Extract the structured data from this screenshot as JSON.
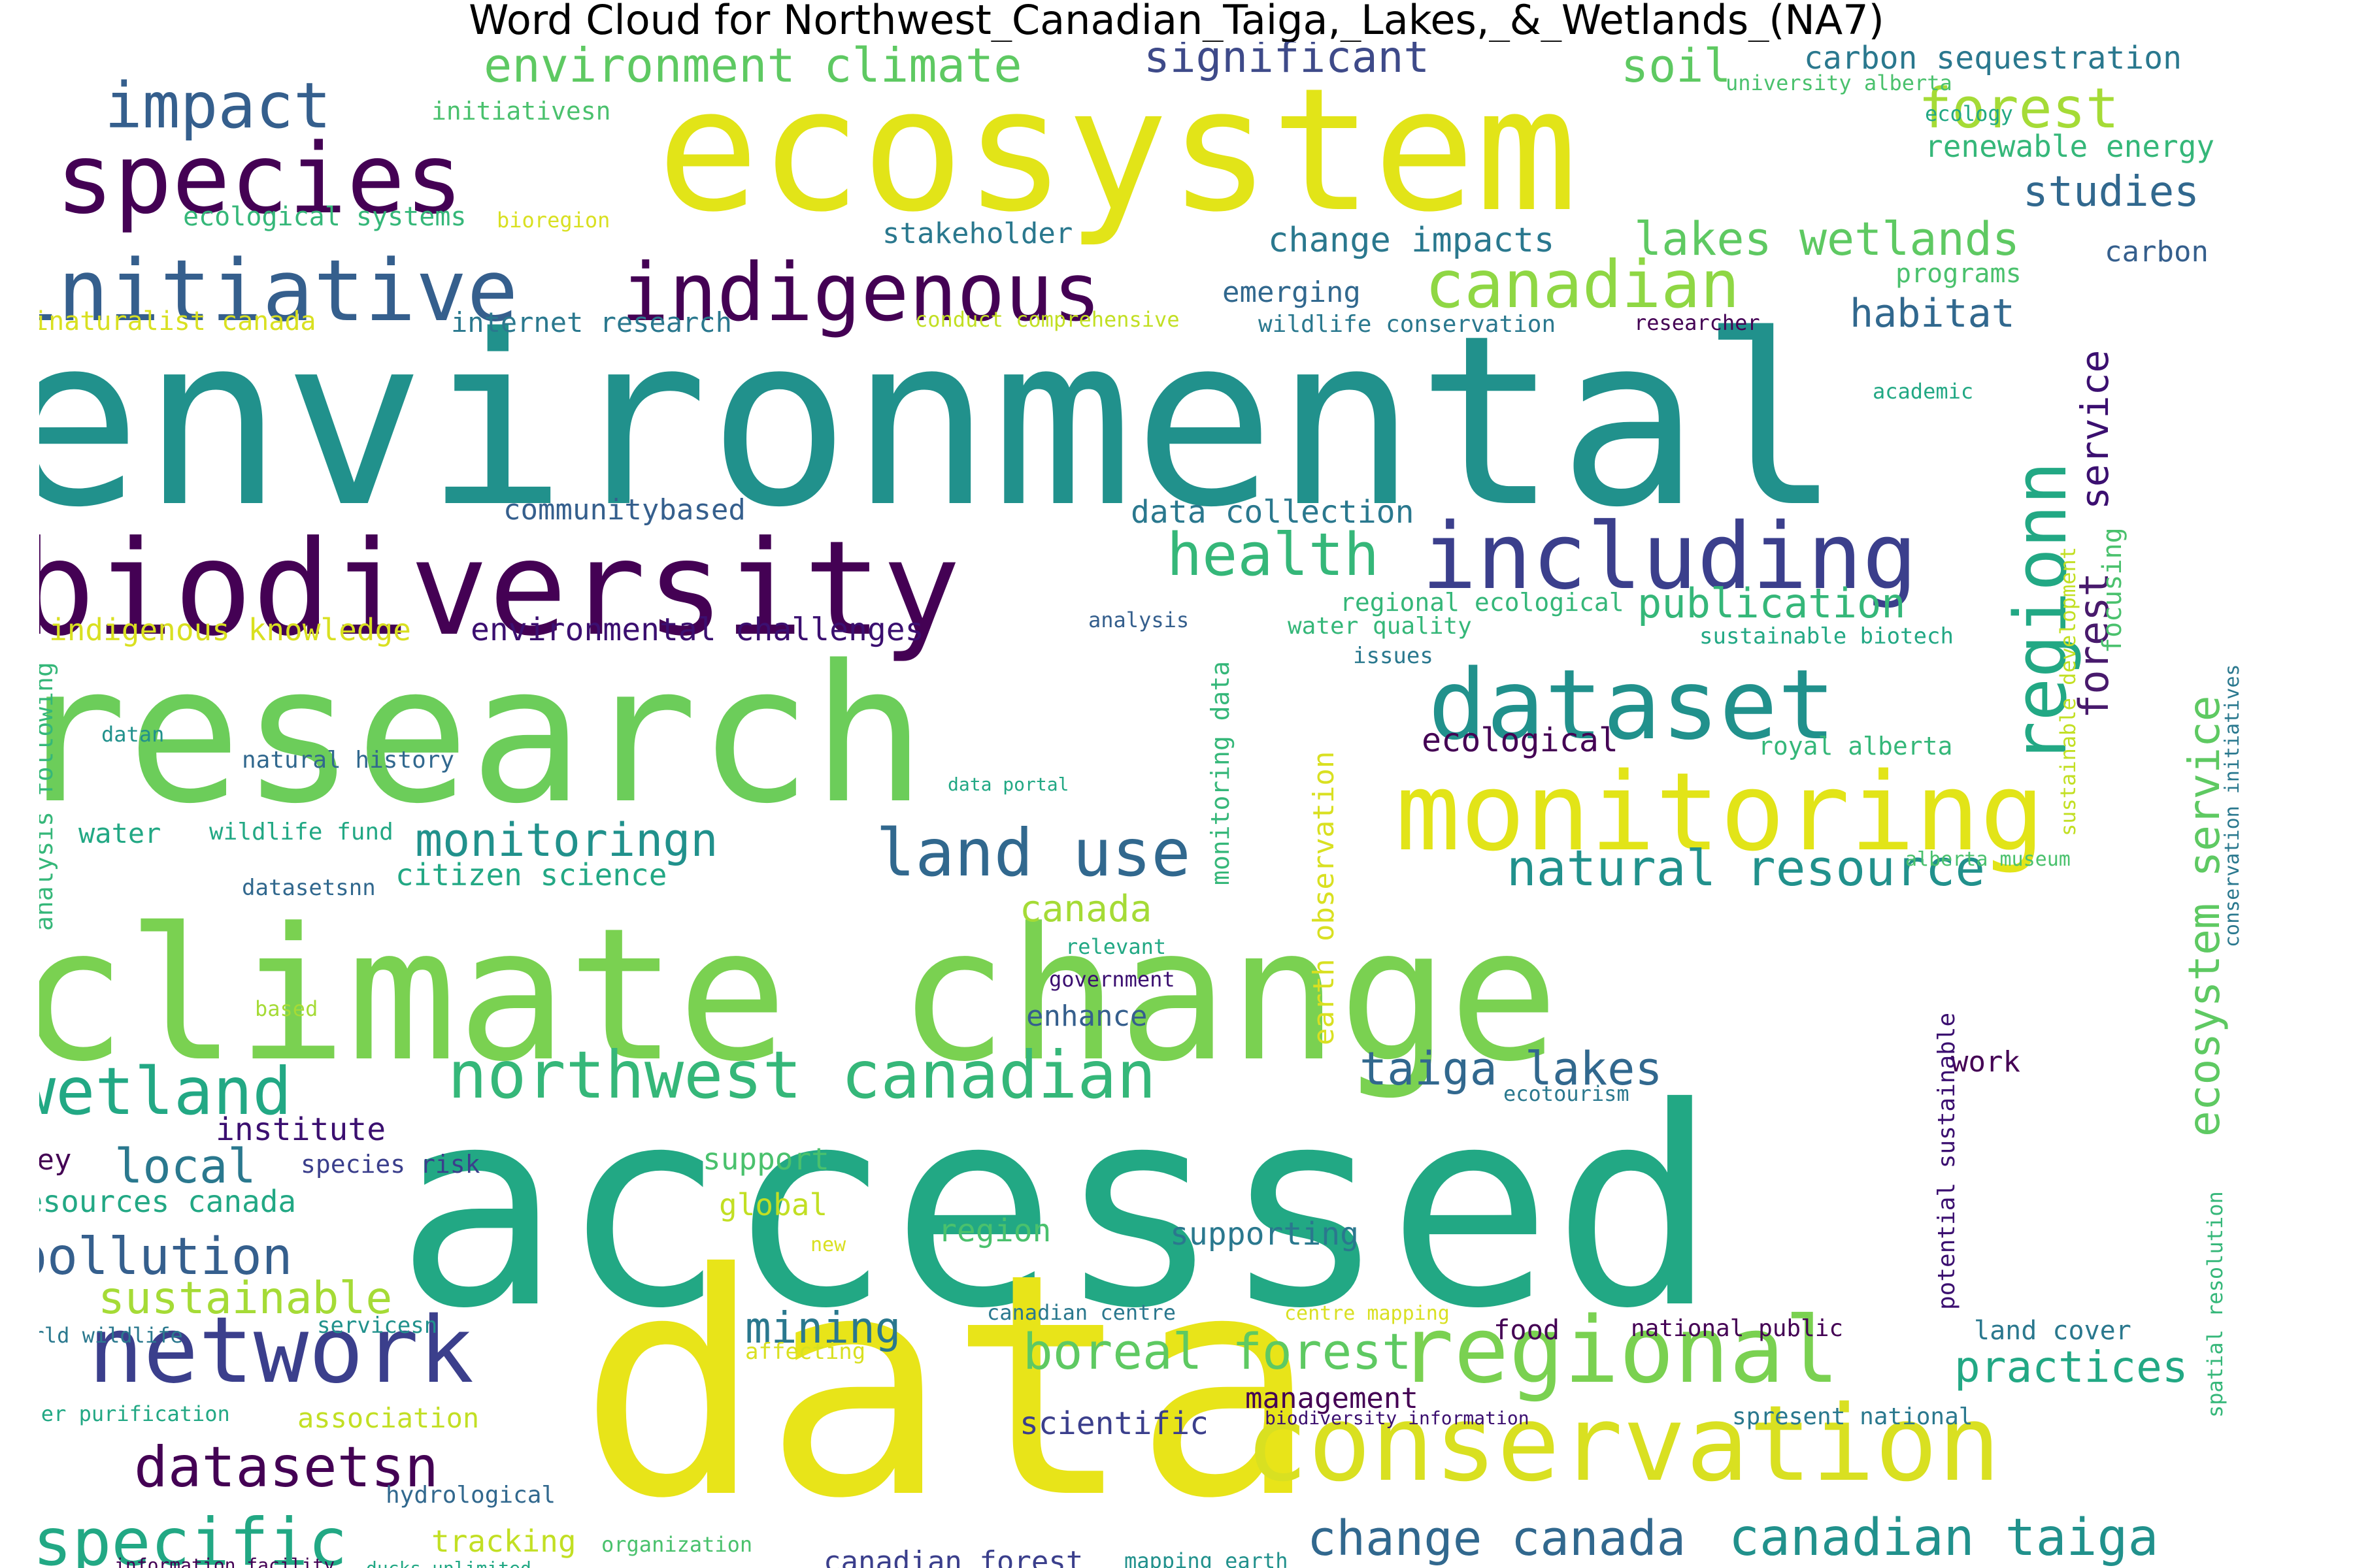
{
  "title": "Word Cloud for Northwest_Canadian_Taiga,_Lakes,_&_Wetlands_(NA7)",
  "palette": {
    "dark_purple": "#440154",
    "indigo": "#3b3f8c",
    "slate_blue": "#355f8d",
    "teal": "#21918c",
    "sea_green": "#22a884",
    "green": "#5ec962",
    "lime": "#7ad151",
    "yellow": "#fde725",
    "gold": "#d9e021"
  },
  "words": [
    {
      "text": "environmental",
      "color": "#21918c"
    },
    {
      "text": "ecosystem",
      "color": "#e2e418"
    },
    {
      "text": "accessed",
      "color": "#22a884"
    },
    {
      "text": "data",
      "color": "#e8e419"
    },
    {
      "text": "research",
      "color": "#6ccd5a"
    },
    {
      "text": "climate change",
      "color": "#7ad151"
    },
    {
      "text": "biodiversity",
      "color": "#440154"
    },
    {
      "text": "species",
      "color": "#440154"
    },
    {
      "text": "initiative",
      "color": "#355f8d"
    },
    {
      "text": "indigenous",
      "color": "#440154"
    },
    {
      "text": "including",
      "color": "#3b3f8c"
    },
    {
      "text": "dataset",
      "color": "#21918c"
    },
    {
      "text": "monitoring",
      "color": "#e2e418"
    },
    {
      "text": "conservation",
      "color": "#d9e021"
    },
    {
      "text": "regional",
      "color": "#7ad151"
    },
    {
      "text": "network",
      "color": "#3b3f8c"
    },
    {
      "text": "regionn",
      "color": "#22a884"
    },
    {
      "text": "canadian",
      "color": "#8fd744"
    },
    {
      "text": "impact",
      "color": "#355f8d"
    },
    {
      "text": "environment climate",
      "color": "#5ec962"
    },
    {
      "text": "significant",
      "color": "#3e4a89"
    },
    {
      "text": "soil",
      "color": "#5ec962"
    },
    {
      "text": "forest",
      "color": "#a5db36"
    },
    {
      "text": "carbon sequestration",
      "color": "#2a788e"
    },
    {
      "text": "university alberta",
      "color": "#4ac16d"
    },
    {
      "text": "ecology",
      "color": "#22a884"
    },
    {
      "text": "renewable energy",
      "color": "#35b779"
    },
    {
      "text": "studies",
      "color": "#31688e"
    },
    {
      "text": "initiativesn",
      "color": "#4ac16d"
    },
    {
      "text": "ecological systems",
      "color": "#35b779"
    },
    {
      "text": "bioregion",
      "color": "#d9e021"
    },
    {
      "text": "stakeholder",
      "color": "#2a788e"
    },
    {
      "text": "change impacts",
      "color": "#2a788e"
    },
    {
      "text": "lakes wetlands",
      "color": "#5ec962"
    },
    {
      "text": "programs",
      "color": "#4ac16d"
    },
    {
      "text": "carbon",
      "color": "#355f8d"
    },
    {
      "text": "emerging",
      "color": "#31688e"
    },
    {
      "text": "habitat",
      "color": "#31688e"
    },
    {
      "text": "service",
      "color": "#3b0f70"
    },
    {
      "text": "inaturalist canada",
      "color": "#d9e021"
    },
    {
      "text": "internet research",
      "color": "#2a788e"
    },
    {
      "text": "conduct comprehensive",
      "color": "#c2df23"
    },
    {
      "text": "wildlife conservation",
      "color": "#2a788e"
    },
    {
      "text": "researcher",
      "color": "#440154"
    },
    {
      "text": "academic",
      "color": "#22a884"
    },
    {
      "text": "health",
      "color": "#35b779"
    },
    {
      "text": "communitybased",
      "color": "#355f8d"
    },
    {
      "text": "data collection",
      "color": "#2a788e"
    },
    {
      "text": "forest",
      "color": "#481a6c"
    },
    {
      "text": "focusing",
      "color": "#4ac16d"
    },
    {
      "text": "publication",
      "color": "#35b779"
    },
    {
      "text": "ecosystem service",
      "color": "#5ec962"
    },
    {
      "text": "sustainable development",
      "color": "#c2df23"
    },
    {
      "text": "conservation initiatives",
      "color": "#2a788e"
    },
    {
      "text": "regional ecological",
      "color": "#35b779"
    },
    {
      "text": "analysis",
      "color": "#355f8d"
    },
    {
      "text": "water quality",
      "color": "#35b779"
    },
    {
      "text": "sustainable biotech",
      "color": "#22a884"
    },
    {
      "text": "issues",
      "color": "#2a788e"
    },
    {
      "text": "indigenous knowledge",
      "color": "#d9e021"
    },
    {
      "text": "environmental challenges",
      "color": "#3b0f70"
    },
    {
      "text": "monitoring data",
      "color": "#35b779"
    },
    {
      "text": "analysis following",
      "color": "#35b779"
    },
    {
      "text": "ecological",
      "color": "#440154"
    },
    {
      "text": "royal alberta",
      "color": "#35b779"
    },
    {
      "text": "datan",
      "color": "#21918c"
    },
    {
      "text": "natural history",
      "color": "#31688e"
    },
    {
      "text": "data portal",
      "color": "#22a884"
    },
    {
      "text": "earth observation",
      "color": "#d9e021"
    },
    {
      "text": "monitoringn",
      "color": "#21918c"
    },
    {
      "text": "land use",
      "color": "#31688e"
    },
    {
      "text": "natural resource",
      "color": "#21918c"
    },
    {
      "text": "water",
      "color": "#22a884"
    },
    {
      "text": "wildlife fund",
      "color": "#22a884"
    },
    {
      "text": "citizen science",
      "color": "#22a884"
    },
    {
      "text": "datasetsnn",
      "color": "#31688e"
    },
    {
      "text": "alberta museum",
      "color": "#4ac16d"
    },
    {
      "text": "canada",
      "color": "#a5db36"
    },
    {
      "text": "relevant",
      "color": "#22a884"
    },
    {
      "text": "government",
      "color": "#3b0f70"
    },
    {
      "text": "based",
      "color": "#a5db36"
    },
    {
      "text": "enhance",
      "color": "#355f8d"
    },
    {
      "text": "wetland",
      "color": "#22a884"
    },
    {
      "text": "northwest canadian",
      "color": "#35b779"
    },
    {
      "text": "taiga lakes",
      "color": "#31688e"
    },
    {
      "text": "work",
      "color": "#440154"
    },
    {
      "text": "ecotourism",
      "color": "#2a788e"
    },
    {
      "text": "potential sustainable",
      "color": "#3b0f70"
    },
    {
      "text": "spatial resolution",
      "color": "#35b779"
    },
    {
      "text": "institute",
      "color": "#3b0f70"
    },
    {
      "text": "key",
      "color": "#440154"
    },
    {
      "text": "local",
      "color": "#2a788e"
    },
    {
      "text": "species risk",
      "color": "#3b3f8c"
    },
    {
      "text": "resources canada",
      "color": "#22a884"
    },
    {
      "text": "support",
      "color": "#4ac16d"
    },
    {
      "text": "global",
      "color": "#c2df23"
    },
    {
      "text": "new",
      "color": "#d9e021"
    },
    {
      "text": "region",
      "color": "#4ac16d"
    },
    {
      "text": "supporting",
      "color": "#2a788e"
    },
    {
      "text": "pollution",
      "color": "#355f8d"
    },
    {
      "text": "sustainable",
      "color": "#a5db36"
    },
    {
      "text": "mining",
      "color": "#2a788e"
    },
    {
      "text": "boreal forest",
      "color": "#5ec962"
    },
    {
      "text": "practices",
      "color": "#22a884"
    },
    {
      "text": "canadian centre",
      "color": "#2a788e"
    },
    {
      "text": "centre mapping",
      "color": "#d9e021"
    },
    {
      "text": "food",
      "color": "#440154"
    },
    {
      "text": "national public",
      "color": "#440154"
    },
    {
      "text": "land cover",
      "color": "#2a788e"
    },
    {
      "text": "world wildlife",
      "color": "#2a788e"
    },
    {
      "text": "servicesn",
      "color": "#21918c"
    },
    {
      "text": "affecting",
      "color": "#d9e021"
    },
    {
      "text": "management",
      "color": "#440154"
    },
    {
      "text": "datasetsn",
      "color": "#440154"
    },
    {
      "text": "water purification",
      "color": "#22a884"
    },
    {
      "text": "association",
      "color": "#c2df23"
    },
    {
      "text": "scientific",
      "color": "#3b3f8c"
    },
    {
      "text": "biodiversity information",
      "color": "#3b0f70"
    },
    {
      "text": "spresent national",
      "color": "#2a788e"
    },
    {
      "text": "specific",
      "color": "#22a884"
    },
    {
      "text": "hydrological",
      "color": "#31688e"
    },
    {
      "text": "tracking",
      "color": "#c2df23"
    },
    {
      "text": "organization",
      "color": "#4ac16d"
    },
    {
      "text": "canadian forest",
      "color": "#3b3f8c"
    },
    {
      "text": "mapping earth",
      "color": "#21918c"
    },
    {
      "text": "change canada",
      "color": "#31688e"
    },
    {
      "text": "canadian taiga",
      "color": "#21918c"
    },
    {
      "text": "information facility",
      "color": "#440154"
    },
    {
      "text": "ducks unlimited",
      "color": "#22a884"
    }
  ]
}
